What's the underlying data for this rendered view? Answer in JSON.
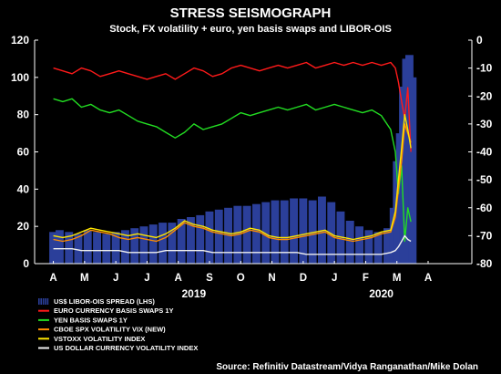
{
  "chart_data": {
    "type": "line",
    "title": "STRESS SEISMOGRAPH",
    "subtitle": "Stock, FX volatility + euro, yen basis swaps and LIBOR-OIS",
    "source": "Source: Refinitiv Datastream/Vidya Ranganathan/Mike Dolan",
    "left_axis": {
      "label": "LHS",
      "ylim": [
        0,
        120
      ],
      "ticks": [
        "0",
        "20",
        "40",
        "60",
        "80",
        "100",
        "120"
      ]
    },
    "right_axis": {
      "ylim": [
        -80,
        0
      ],
      "ticks": [
        "0",
        "-10",
        "-20",
        "-30",
        "-40",
        "-50",
        "-60",
        "-70",
        "-80"
      ]
    },
    "x_axis": {
      "months": [
        "A",
        "M",
        "J",
        "J",
        "A",
        "S",
        "O",
        "N",
        "D",
        "J",
        "F",
        "M",
        "A"
      ],
      "years": [
        "2019",
        "2020"
      ]
    },
    "legend": [
      {
        "label": "US$ LIBOR-OIS SPREAD (LHS)",
        "color": "#2b3f9a",
        "kind": "bar"
      },
      {
        "label": "EURO CURRENCY BASIS SWAPS 1Y",
        "color": "#ff1a1a",
        "kind": "line"
      },
      {
        "label": "YEN BASIS SWAPS 1Y",
        "color": "#22dd22",
        "kind": "line"
      },
      {
        "label": "CBOE SPX VOLATILITY VIX (NEW)",
        "color": "#ff8c00",
        "kind": "line"
      },
      {
        "label": "VSTOXX VOLATILITY INDEX",
        "color": "#ffe600",
        "kind": "line"
      },
      {
        "label": "US DOLLAR CURRENCY VOLATILITY INDEX",
        "color": "#f0f0f0",
        "kind": "line"
      }
    ],
    "series": [
      {
        "name": "US$ LIBOR-OIS SPREAD (LHS)",
        "axis": "left",
        "type": "bar",
        "x": [
          0,
          0.2,
          0.5,
          0.8,
          1.1,
          1.4,
          1.7,
          2.0,
          2.3,
          2.6,
          2.9,
          3.2,
          3.5,
          3.8,
          4.1,
          4.4,
          4.7,
          5.0,
          5.3,
          5.6,
          5.9,
          6.2,
          6.5,
          6.8,
          7.1,
          7.4,
          7.7,
          8.0,
          8.3,
          8.6,
          8.9,
          9.2,
          9.5,
          9.8,
          10.1,
          10.4,
          10.7,
          10.9,
          11.0,
          11.1,
          11.2,
          11.3,
          11.4,
          11.5
        ],
        "y": [
          17,
          18,
          17,
          16,
          18,
          17,
          16,
          17,
          18,
          19,
          20,
          21,
          22,
          22,
          24,
          25,
          26,
          28,
          29,
          30,
          31,
          31,
          32,
          33,
          34,
          34,
          35,
          35,
          34,
          36,
          33,
          28,
          23,
          20,
          18,
          17,
          19,
          30,
          55,
          70,
          95,
          110,
          112,
          100
        ]
      },
      {
        "name": "EURO CURRENCY BASIS SWAPS 1Y",
        "axis": "right",
        "type": "line",
        "x": [
          0,
          0.3,
          0.6,
          0.9,
          1.2,
          1.5,
          1.8,
          2.1,
          2.4,
          2.7,
          3.0,
          3.3,
          3.6,
          3.9,
          4.2,
          4.5,
          4.8,
          5.1,
          5.4,
          5.7,
          6.0,
          6.3,
          6.6,
          6.9,
          7.2,
          7.5,
          7.8,
          8.1,
          8.4,
          8.7,
          9.0,
          9.3,
          9.6,
          9.9,
          10.2,
          10.5,
          10.8,
          10.95,
          11.05,
          11.15,
          11.25,
          11.35,
          11.45
        ],
        "y": [
          -10,
          -11,
          -12,
          -10,
          -11,
          -13,
          -12,
          -11,
          -12,
          -13,
          -14,
          -13,
          -12,
          -14,
          -12,
          -10,
          -11,
          -13,
          -12,
          -10,
          -9,
          -10,
          -11,
          -10,
          -9,
          -10,
          -9,
          -8,
          -10,
          -9,
          -8,
          -9,
          -8,
          -9,
          -8,
          -9,
          -8,
          -10,
          -15,
          -22,
          -28,
          -17,
          -40
        ]
      },
      {
        "name": "YEN BASIS SWAPS 1Y",
        "axis": "right",
        "type": "line",
        "x": [
          0,
          0.3,
          0.6,
          0.9,
          1.2,
          1.5,
          1.8,
          2.1,
          2.4,
          2.7,
          3.0,
          3.3,
          3.6,
          3.9,
          4.2,
          4.5,
          4.8,
          5.1,
          5.4,
          5.7,
          6.0,
          6.3,
          6.6,
          6.9,
          7.2,
          7.5,
          7.8,
          8.1,
          8.4,
          8.7,
          9.0,
          9.3,
          9.6,
          9.9,
          10.2,
          10.5,
          10.8,
          10.95,
          11.05,
          11.15,
          11.25,
          11.35,
          11.45
        ],
        "y": [
          -21,
          -22,
          -21,
          -24,
          -23,
          -25,
          -26,
          -25,
          -27,
          -29,
          -30,
          -31,
          -33,
          -35,
          -33,
          -30,
          -32,
          -31,
          -30,
          -28,
          -26,
          -27,
          -26,
          -25,
          -24,
          -25,
          -24,
          -23,
          -25,
          -24,
          -23,
          -24,
          -25,
          -26,
          -25,
          -27,
          -32,
          -40,
          -55,
          -45,
          -72,
          -60,
          -65
        ]
      },
      {
        "name": "CBOE SPX VOLATILITY VIX (NEW)",
        "axis": "left",
        "type": "line",
        "x": [
          0,
          0.3,
          0.6,
          0.9,
          1.2,
          1.5,
          1.8,
          2.1,
          2.4,
          2.7,
          3.0,
          3.3,
          3.6,
          3.9,
          4.2,
          4.5,
          4.8,
          5.1,
          5.4,
          5.7,
          6.0,
          6.3,
          6.6,
          6.9,
          7.2,
          7.5,
          7.8,
          8.1,
          8.4,
          8.7,
          9.0,
          9.3,
          9.6,
          9.9,
          10.2,
          10.5,
          10.8,
          10.95,
          11.05,
          11.15,
          11.25,
          11.35,
          11.45
        ],
        "y": [
          13,
          12,
          13,
          15,
          18,
          17,
          16,
          14,
          13,
          14,
          13,
          12,
          14,
          18,
          22,
          20,
          19,
          17,
          16,
          15,
          16,
          18,
          17,
          14,
          13,
          13,
          14,
          15,
          16,
          17,
          14,
          13,
          12,
          13,
          14,
          16,
          17,
          25,
          40,
          55,
          75,
          70,
          65
        ]
      },
      {
        "name": "VSTOXX VOLATILITY INDEX",
        "axis": "left",
        "type": "line",
        "x": [
          0,
          0.3,
          0.6,
          0.9,
          1.2,
          1.5,
          1.8,
          2.1,
          2.4,
          2.7,
          3.0,
          3.3,
          3.6,
          3.9,
          4.2,
          4.5,
          4.8,
          5.1,
          5.4,
          5.7,
          6.0,
          6.3,
          6.6,
          6.9,
          7.2,
          7.5,
          7.8,
          8.1,
          8.4,
          8.7,
          9.0,
          9.3,
          9.6,
          9.9,
          10.2,
          10.5,
          10.8,
          10.95,
          11.05,
          11.15,
          11.25,
          11.35,
          11.45
        ],
        "y": [
          15,
          14,
          15,
          17,
          19,
          18,
          17,
          16,
          15,
          16,
          15,
          14,
          16,
          19,
          23,
          21,
          20,
          18,
          17,
          16,
          17,
          19,
          18,
          15,
          14,
          14,
          15,
          16,
          17,
          18,
          15,
          14,
          13,
          14,
          15,
          17,
          18,
          28,
          45,
          62,
          80,
          72,
          62
        ]
      },
      {
        "name": "US DOLLAR CURRENCY VOLATILITY INDEX",
        "axis": "left",
        "type": "line",
        "x": [
          0,
          0.3,
          0.6,
          0.9,
          1.2,
          1.5,
          1.8,
          2.1,
          2.4,
          2.7,
          3.0,
          3.3,
          3.6,
          3.9,
          4.2,
          4.5,
          4.8,
          5.1,
          5.4,
          5.7,
          6.0,
          6.3,
          6.6,
          6.9,
          7.2,
          7.5,
          7.8,
          8.1,
          8.4,
          8.7,
          9.0,
          9.3,
          9.6,
          9.9,
          10.2,
          10.5,
          10.8,
          10.95,
          11.05,
          11.15,
          11.25,
          11.35,
          11.45
        ],
        "y": [
          8,
          8,
          8,
          7,
          7,
          7,
          7,
          7,
          6,
          6,
          6,
          6,
          7,
          7,
          7,
          7,
          7,
          6,
          6,
          6,
          6,
          6,
          6,
          6,
          6,
          6,
          6,
          5,
          5,
          5,
          5,
          5,
          5,
          5,
          5,
          5,
          6,
          7,
          9,
          12,
          15,
          13,
          12
        ]
      }
    ]
  }
}
